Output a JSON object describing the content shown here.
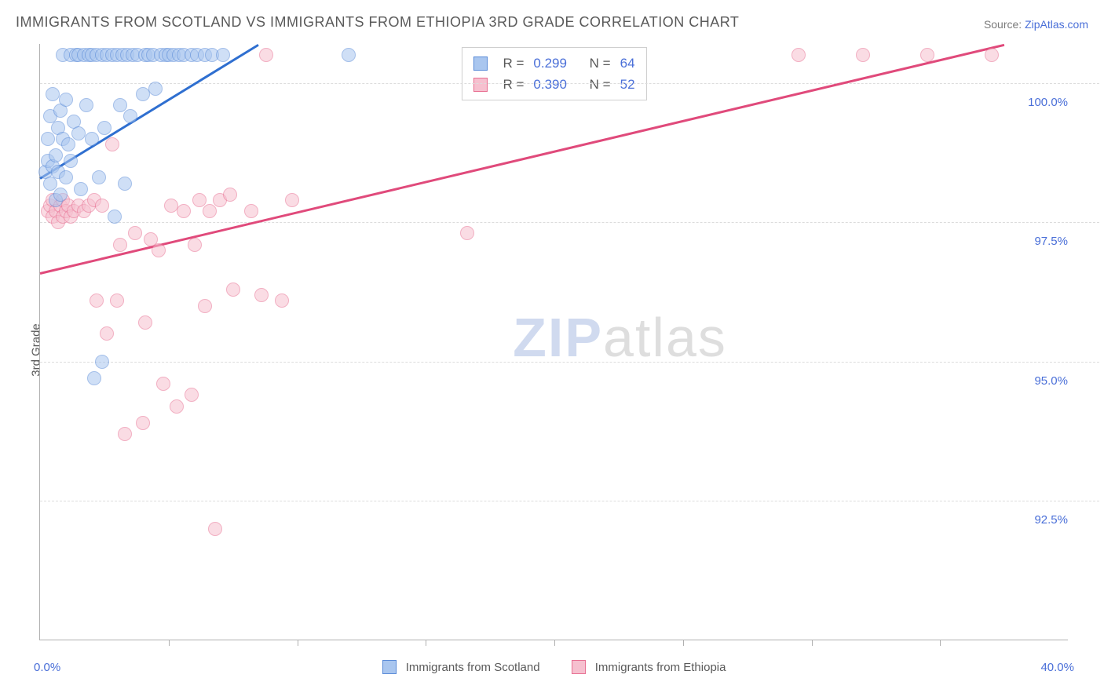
{
  "header": {
    "title": "IMMIGRANTS FROM SCOTLAND VS IMMIGRANTS FROM ETHIOPIA 3RD GRADE CORRELATION CHART",
    "source_label": "Source:",
    "source_value": "ZipAtlas.com"
  },
  "chart": {
    "type": "scatter",
    "ylabel": "3rd Grade",
    "xlim": [
      0.0,
      40.0
    ],
    "ylim": [
      90.0,
      100.7
    ],
    "x_minor_ticks": [
      5,
      10,
      15,
      20,
      25,
      30,
      35
    ],
    "ygrid": [
      92.5,
      95.0,
      97.5,
      100.0
    ],
    "ytick_labels": [
      "92.5%",
      "95.0%",
      "97.5%",
      "100.0%"
    ],
    "xlim_labels": [
      "0.0%",
      "40.0%"
    ],
    "background_color": "#ffffff",
    "grid_color": "#dcdcdc",
    "axis_color": "#b0b0b0",
    "tick_label_color": "#4a6fd8",
    "label_fontsize": 15,
    "title_color": "#5a5a5a",
    "marker_radius": 9,
    "marker_opacity": 0.55,
    "watermark": {
      "zip": "ZIP",
      "atlas": "atlas"
    }
  },
  "series": {
    "scotland": {
      "label": "Immigrants from Scotland",
      "fill": "#a9c6ef",
      "stroke": "#5a8bd8",
      "line_color": "#2f6fd0",
      "R": "0.299",
      "N": "64",
      "trend": {
        "x1": 0.0,
        "y1": 98.3,
        "x2": 8.5,
        "y2": 100.7
      },
      "points": [
        [
          0.2,
          98.4
        ],
        [
          0.3,
          99.0
        ],
        [
          0.3,
          98.6
        ],
        [
          0.4,
          98.2
        ],
        [
          0.4,
          99.4
        ],
        [
          0.5,
          98.5
        ],
        [
          0.5,
          99.8
        ],
        [
          0.6,
          98.7
        ],
        [
          0.6,
          97.9
        ],
        [
          0.7,
          99.2
        ],
        [
          0.7,
          98.4
        ],
        [
          0.8,
          99.5
        ],
        [
          0.8,
          98.0
        ],
        [
          0.9,
          99.0
        ],
        [
          0.9,
          100.5
        ],
        [
          1.0,
          98.3
        ],
        [
          1.0,
          99.7
        ],
        [
          1.1,
          98.9
        ],
        [
          1.2,
          100.5
        ],
        [
          1.2,
          98.6
        ],
        [
          1.3,
          99.3
        ],
        [
          1.4,
          100.5
        ],
        [
          1.5,
          99.1
        ],
        [
          1.5,
          100.5
        ],
        [
          1.6,
          98.1
        ],
        [
          1.7,
          100.5
        ],
        [
          1.8,
          99.6
        ],
        [
          1.9,
          100.5
        ],
        [
          2.0,
          99.0
        ],
        [
          2.0,
          100.5
        ],
        [
          2.1,
          94.7
        ],
        [
          2.2,
          100.5
        ],
        [
          2.3,
          98.3
        ],
        [
          2.4,
          95.0
        ],
        [
          2.4,
          100.5
        ],
        [
          2.5,
          99.2
        ],
        [
          2.6,
          100.5
        ],
        [
          2.8,
          100.5
        ],
        [
          2.9,
          97.6
        ],
        [
          3.0,
          100.5
        ],
        [
          3.1,
          99.6
        ],
        [
          3.2,
          100.5
        ],
        [
          3.3,
          98.2
        ],
        [
          3.4,
          100.5
        ],
        [
          3.5,
          99.4
        ],
        [
          3.6,
          100.5
        ],
        [
          3.8,
          100.5
        ],
        [
          4.0,
          99.8
        ],
        [
          4.1,
          100.5
        ],
        [
          4.2,
          100.5
        ],
        [
          4.4,
          100.5
        ],
        [
          4.5,
          99.9
        ],
        [
          4.7,
          100.5
        ],
        [
          4.9,
          100.5
        ],
        [
          5.0,
          100.5
        ],
        [
          5.2,
          100.5
        ],
        [
          5.4,
          100.5
        ],
        [
          5.6,
          100.5
        ],
        [
          5.9,
          100.5
        ],
        [
          6.1,
          100.5
        ],
        [
          6.4,
          100.5
        ],
        [
          6.7,
          100.5
        ],
        [
          7.1,
          100.5
        ],
        [
          12.0,
          100.5
        ]
      ]
    },
    "ethiopia": {
      "label": "Immigrants from Ethiopia",
      "fill": "#f6c0cf",
      "stroke": "#e86f92",
      "line_color": "#e04a7b",
      "R": "0.390",
      "N": "52",
      "trend": {
        "x1": 0.0,
        "y1": 96.6,
        "x2": 37.5,
        "y2": 100.7
      },
      "points": [
        [
          0.3,
          97.7
        ],
        [
          0.4,
          97.8
        ],
        [
          0.5,
          97.6
        ],
        [
          0.5,
          97.9
        ],
        [
          0.6,
          97.7
        ],
        [
          0.7,
          97.5
        ],
        [
          0.8,
          97.8
        ],
        [
          0.9,
          97.6
        ],
        [
          0.9,
          97.9
        ],
        [
          1.0,
          97.7
        ],
        [
          1.1,
          97.8
        ],
        [
          1.2,
          97.6
        ],
        [
          1.3,
          97.7
        ],
        [
          1.5,
          97.8
        ],
        [
          1.7,
          97.7
        ],
        [
          1.9,
          97.8
        ],
        [
          2.1,
          97.9
        ],
        [
          2.4,
          97.8
        ],
        [
          2.2,
          96.1
        ],
        [
          2.6,
          95.5
        ],
        [
          2.8,
          98.9
        ],
        [
          3.0,
          96.1
        ],
        [
          3.1,
          97.1
        ],
        [
          3.3,
          93.7
        ],
        [
          3.7,
          97.3
        ],
        [
          4.0,
          93.9
        ],
        [
          4.1,
          95.7
        ],
        [
          4.3,
          97.2
        ],
        [
          4.6,
          97.0
        ],
        [
          4.8,
          94.6
        ],
        [
          5.1,
          97.8
        ],
        [
          5.3,
          94.2
        ],
        [
          5.6,
          97.7
        ],
        [
          5.9,
          94.4
        ],
        [
          6.0,
          97.1
        ],
        [
          6.2,
          97.9
        ],
        [
          6.4,
          96.0
        ],
        [
          6.6,
          97.7
        ],
        [
          6.8,
          92.0
        ],
        [
          7.0,
          97.9
        ],
        [
          7.4,
          98.0
        ],
        [
          7.5,
          96.3
        ],
        [
          8.2,
          97.7
        ],
        [
          8.6,
          96.2
        ],
        [
          8.8,
          100.5
        ],
        [
          9.4,
          96.1
        ],
        [
          9.8,
          97.9
        ],
        [
          16.6,
          97.3
        ],
        [
          29.5,
          100.5
        ],
        [
          32.0,
          100.5
        ],
        [
          34.5,
          100.5
        ],
        [
          37.0,
          100.5
        ]
      ]
    }
  },
  "legend_box": {
    "r_label": "R =",
    "n_label": "N ="
  }
}
